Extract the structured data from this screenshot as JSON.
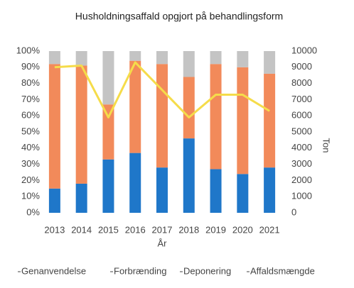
{
  "chart_data": {
    "type": "bar",
    "stacked": true,
    "title": "Husholdningsaffald opgjort på behandlingsform",
    "x_label": "År",
    "y2_label": "Ton",
    "categories": [
      "2013",
      "2014",
      "2015",
      "2016",
      "2017",
      "2018",
      "2019",
      "2020",
      "2021"
    ],
    "series": [
      {
        "name": "Genanvendelse",
        "color": "#1f77c9",
        "values": [
          15,
          18,
          33,
          37,
          28,
          46,
          27,
          24,
          28
        ]
      },
      {
        "name": "Forbrænding",
        "color": "#f28a5a",
        "values": [
          77,
          73,
          34,
          57,
          64,
          38,
          65,
          66,
          58
        ]
      },
      {
        "name": "Deponering",
        "color": "#c4c4c4",
        "values": [
          8,
          9,
          33,
          6,
          8,
          16,
          8,
          10,
          14
        ]
      },
      {
        "name": "Affaldsmængde",
        "color": "#f5dc4a",
        "type": "line",
        "axis": "y2",
        "values": [
          9000,
          9100,
          5900,
          9300,
          7600,
          5900,
          7300,
          7300,
          6300
        ]
      }
    ],
    "ylim": [
      0,
      100
    ],
    "yticks": [
      {
        "value": 0,
        "label": "0%"
      },
      {
        "value": 10,
        "label": "10%"
      },
      {
        "value": 20,
        "label": "20%"
      },
      {
        "value": 30,
        "label": "30%"
      },
      {
        "value": 40,
        "label": "40%"
      },
      {
        "value": 50,
        "label": "50%"
      },
      {
        "value": 60,
        "label": "60%"
      },
      {
        "value": 70,
        "label": "70%"
      },
      {
        "value": 80,
        "label": "80%"
      },
      {
        "value": 90,
        "label": "90%"
      },
      {
        "value": 100,
        "label": "100%"
      }
    ],
    "y2lim": [
      0,
      10000
    ],
    "y2ticks": [
      0,
      1000,
      2000,
      3000,
      4000,
      5000,
      6000,
      7000,
      8000,
      9000,
      10000
    ],
    "grid": false,
    "legend": "bottom"
  }
}
